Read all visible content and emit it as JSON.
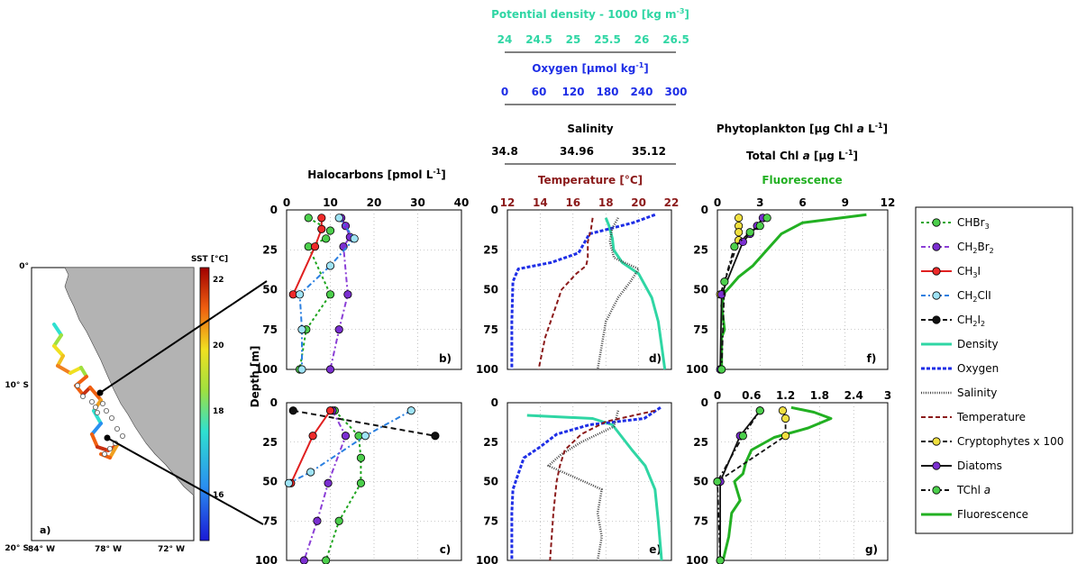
{
  "top_axes": {
    "density_title": "Potential density - 1000 [kg m",
    "density_title_sup": "-3",
    "density_title_end": "]",
    "density_ticks": [
      "24",
      "24.5",
      "25",
      "25.5",
      "26",
      "26.5"
    ],
    "oxygen_title": "Oxygen [µmol kg",
    "oxygen_title_sup": "-1",
    "oxygen_title_end": "]",
    "oxygen_ticks": [
      "0",
      "60",
      "120",
      "180",
      "240",
      "300"
    ],
    "salinity_title": "Salinity",
    "salinity_ticks": [
      "34.8",
      "34.96",
      "35.12"
    ],
    "temperature_title": "Temperature [°C]",
    "temperature_ticks": [
      "12",
      "14",
      "16",
      "18",
      "20",
      "22"
    ],
    "halo_title": "Halocarbons [pmol L",
    "halo_title_sup": "-1",
    "halo_title_end": "]",
    "halo_ticks": [
      "0",
      "10",
      "20",
      "30",
      "40"
    ],
    "phyto_title": "Phytoplankton [µg Chl",
    "phyto_title_it": "a",
    "phyto_title_end": "L",
    "phyto_title_sup": "-1",
    "phyto_title_end2": "]",
    "tchl_title": "Total Chl",
    "tchl_title_it": "a",
    "tchl_title_end": "[µg L",
    "tchl_title_sup": "-1",
    "tchl_title_end2": "]",
    "fluor_title": "Fluorescence",
    "fluor_ticks": [
      "0",
      "3",
      "6",
      "9",
      "12"
    ],
    "phyto_bottom_ticks": [
      "0",
      "0.6",
      "1.2",
      "1.8",
      "2.4",
      "3"
    ]
  },
  "depth_label": "Depth [m]",
  "depth_ticks": [
    "0",
    "25",
    "50",
    "75",
    "100"
  ],
  "panel_letters": {
    "a": "a)",
    "b": "b)",
    "c": "c)",
    "d": "d)",
    "e": "e)",
    "f": "f)",
    "g": "g)"
  },
  "map": {
    "sst_label": "SST [°C]",
    "colorbar_ticks": [
      "22",
      "20",
      "18",
      "16"
    ],
    "lat_labels": [
      "0°",
      "10° S",
      "20° S"
    ],
    "lon_labels": [
      "84° W",
      "78° W",
      "72° W"
    ]
  },
  "legend": [
    {
      "label": "CHBr",
      "sub": "3",
      "rest": "",
      "color": "#1fa51f",
      "marker": "#4ccf4c",
      "style": "dot-dash"
    },
    {
      "label": "CH",
      "sub": "2",
      "rest": "Br",
      "sub2": "2",
      "color": "#8b3fd6",
      "marker": "#7b2fd0",
      "style": "dash-dot"
    },
    {
      "label": "CH",
      "sub": "3",
      "rest": "I",
      "color": "#e02020",
      "marker": "#ee2a2a",
      "style": "solid"
    },
    {
      "label": "CH",
      "sub": "2",
      "rest": "ClI",
      "color": "#2a7fe0",
      "marker": "#9fe3f5",
      "style": "dash-dot"
    },
    {
      "label": "CH",
      "sub": "2",
      "rest": "I",
      "sub2": "2",
      "color": "#111111",
      "marker": "#111111",
      "style": "dash"
    },
    {
      "label": "Density",
      "color": "#2fd6a4",
      "style": "thick"
    },
    {
      "label": "Oxygen",
      "color": "#1e2ee6",
      "style": "thickdash"
    },
    {
      "label": "Salinity",
      "color": "#444444",
      "style": "dots"
    },
    {
      "label": "Temperature",
      "color": "#8b1a1a",
      "style": "dash"
    },
    {
      "label": "Cryptophytes x 100",
      "color": "#111111",
      "marker": "#f0e040",
      "style": "dash"
    },
    {
      "label": "Diatoms",
      "color": "#111111",
      "marker": "#7b2fd0",
      "style": "solid"
    },
    {
      "label": "TChl",
      "label_it": "a",
      "color": "#111111",
      "marker": "#4ccf4c",
      "style": "dashdot"
    },
    {
      "label": "Fluorescence",
      "color": "#22b022",
      "style": "thick"
    }
  ],
  "chart_data": [
    {
      "type": "line",
      "panel": "b",
      "xlim": [
        0,
        40
      ],
      "ylim": [
        0,
        100
      ],
      "series": [
        {
          "name": "CHBr3",
          "x": [
            5,
            10,
            9,
            5,
            10,
            4.5,
            3
          ],
          "y": [
            5,
            13,
            18,
            23,
            53,
            75,
            100
          ]
        },
        {
          "name": "CH2Br2",
          "x": [
            12.5,
            13.5,
            14.5,
            13,
            14,
            12,
            10
          ],
          "y": [
            5,
            10,
            17,
            23,
            53,
            75,
            100
          ]
        },
        {
          "name": "CH3I",
          "x": [
            8,
            8,
            6.5,
            1.5
          ],
          "y": [
            5,
            12,
            23,
            53
          ]
        },
        {
          "name": "CH2ClI",
          "x": [
            12,
            15.5,
            10,
            3,
            3.5,
            3.5
          ],
          "y": [
            5,
            18,
            35,
            53,
            75,
            100
          ]
        }
      ]
    },
    {
      "type": "line",
      "panel": "c",
      "xlim": [
        0,
        40
      ],
      "ylim": [
        0,
        100
      ],
      "series": [
        {
          "name": "CHBr3",
          "x": [
            11,
            16.5,
            17,
            17,
            12,
            9
          ],
          "y": [
            5,
            21,
            35,
            51,
            75,
            100
          ]
        },
        {
          "name": "CH2Br2",
          "x": [
            10.5,
            13.5,
            9.5,
            7,
            4
          ],
          "y": [
            5,
            21,
            51,
            75,
            100
          ]
        },
        {
          "name": "CH3I",
          "x": [
            10,
            6,
            1
          ],
          "y": [
            5,
            21,
            51
          ]
        },
        {
          "name": "CH2ClI",
          "x": [
            28.5,
            18,
            5.5,
            0.5
          ],
          "y": [
            5,
            21,
            44,
            51
          ]
        },
        {
          "name": "CH2I2",
          "x": [
            1.5,
            34
          ],
          "y": [
            5,
            21
          ]
        }
      ]
    },
    {
      "type": "line",
      "panel": "d",
      "ylim": [
        0,
        100
      ],
      "temperature_xlim": [
        12,
        22
      ],
      "series": [
        {
          "name": "Density",
          "axis": "density",
          "x": [
            25.5,
            25.55,
            25.6,
            25.62,
            25.75,
            26.0,
            26.2,
            26.3,
            26.35,
            26.4
          ],
          "y": [
            5,
            10,
            18,
            25,
            33,
            40,
            55,
            70,
            85,
            100
          ]
        },
        {
          "name": "Oxygen",
          "axis": "oxygen",
          "x": [
            270,
            230,
            150,
            130,
            80,
            20,
            10,
            8,
            8
          ],
          "y": [
            3,
            8,
            15,
            27,
            33,
            37,
            45,
            70,
            100
          ]
        },
        {
          "name": "Salinity",
          "axis": "salinity",
          "x": [
            35.07,
            35.055,
            35.05,
            35.06,
            35.12,
            35.1,
            35.07,
            35.04,
            35.03,
            35.02
          ],
          "y": [
            5,
            12,
            20,
            30,
            37,
            45,
            55,
            70,
            85,
            100
          ]
        },
        {
          "name": "Temperature",
          "axis": "temperature",
          "x": [
            17.2,
            17.1,
            16.9,
            16.9,
            16.8,
            16.2,
            15.3,
            14.8,
            14.3,
            13.9
          ],
          "y": [
            5,
            12,
            20,
            30,
            35,
            40,
            50,
            65,
            80,
            100
          ]
        }
      ]
    },
    {
      "type": "line",
      "panel": "e",
      "ylim": [
        0,
        100
      ],
      "series": [
        {
          "name": "Density",
          "axis": "density",
          "x": [
            24.3,
            25.3,
            25.6,
            25.75,
            25.9,
            26.1,
            26.25,
            26.3,
            26.35
          ],
          "y": [
            8,
            10,
            14,
            22,
            30,
            40,
            55,
            75,
            100
          ]
        },
        {
          "name": "Oxygen",
          "axis": "oxygen",
          "x": [
            280,
            250,
            150,
            90,
            60,
            30,
            20,
            10,
            8,
            8
          ],
          "y": [
            3,
            10,
            14,
            20,
            28,
            35,
            45,
            55,
            70,
            100
          ]
        },
        {
          "name": "Salinity",
          "axis": "salinity",
          "x": [
            35.07,
            35.06,
            34.98,
            34.93,
            34.9,
            34.97,
            35.03,
            35.02,
            35.03,
            35.02
          ],
          "y": [
            5,
            15,
            25,
            33,
            40,
            48,
            55,
            70,
            85,
            100
          ]
        },
        {
          "name": "Temperature",
          "axis": "temperature",
          "x": [
            21.0,
            18.0,
            16.5,
            15.5,
            15.2,
            15.0,
            14.8,
            14.6
          ],
          "y": [
            5,
            12,
            20,
            30,
            40,
            50,
            70,
            100
          ]
        }
      ]
    },
    {
      "type": "line",
      "panel": "f",
      "xlim": [
        0,
        12
      ],
      "ylim": [
        0,
        100
      ],
      "series": [
        {
          "name": "Fluorescence",
          "x": [
            10.5,
            6,
            4.5,
            3.5,
            2.5,
            1.5,
            1.0,
            0.5,
            0.3,
            0.5,
            0.3,
            0.3,
            0.3
          ],
          "y": [
            3,
            8,
            15,
            25,
            35,
            42,
            47,
            52,
            60,
            75,
            80,
            90,
            100
          ]
        },
        {
          "name": "Cryptophytes x 100",
          "x": [
            1.5,
            1.5,
            1.5,
            1.5,
            0.2
          ],
          "y": [
            5,
            10,
            14,
            19,
            53
          ]
        },
        {
          "name": "Diatoms",
          "x": [
            3.2,
            2.8,
            2.3,
            1.8,
            0.3,
            0.2
          ],
          "y": [
            5,
            10,
            15,
            20,
            53,
            100
          ]
        },
        {
          "name": "TChl a",
          "x": [
            3.5,
            3.0,
            2.3,
            1.2,
            0.5,
            0.3
          ],
          "y": [
            5,
            10,
            14,
            23,
            45,
            100
          ]
        }
      ]
    },
    {
      "type": "line",
      "panel": "g",
      "xlim": [
        0,
        3
      ],
      "ylim": [
        0,
        100
      ],
      "series": [
        {
          "name": "Fluorescence",
          "x": [
            1.3,
            1.7,
            2.0,
            1.6,
            1.0,
            0.6,
            0.5,
            0.45,
            0.3,
            0.4,
            0.25,
            0.2,
            0.1
          ],
          "y": [
            3,
            6,
            10,
            16,
            22,
            30,
            38,
            45,
            50,
            62,
            70,
            85,
            100
          ]
        },
        {
          "name": "Cryptophytes x 100",
          "x": [
            1.15,
            1.2,
            1.2,
            0.0
          ],
          "y": [
            5,
            10,
            21,
            50
          ]
        },
        {
          "name": "Diatoms",
          "x": [
            0.75,
            0.4,
            0.05,
            0.05
          ],
          "y": [
            5,
            21,
            50,
            100
          ]
        },
        {
          "name": "TChl a",
          "x": [
            0.75,
            0.45,
            0.0,
            0.05
          ],
          "y": [
            5,
            21,
            50,
            100
          ]
        }
      ]
    }
  ]
}
